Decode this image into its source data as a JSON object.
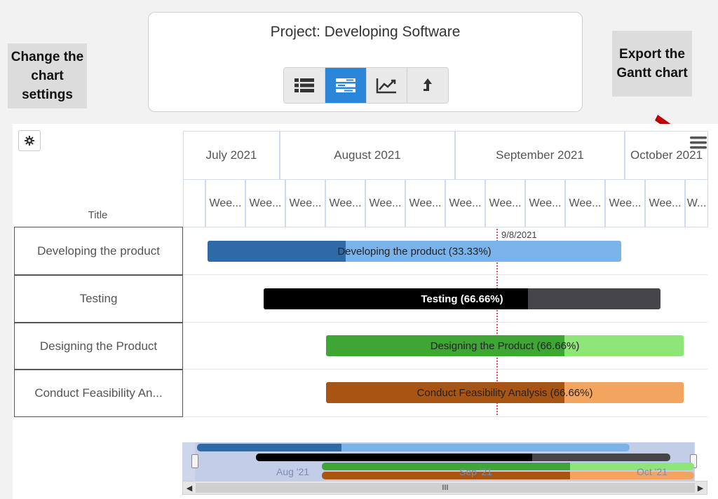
{
  "header": {
    "project_title": "Project: Developing Software",
    "toolbar": [
      {
        "name": "list-view-button",
        "icon": "list-icon",
        "active": false
      },
      {
        "name": "gantt-view-button",
        "icon": "gantt-icon",
        "active": true
      },
      {
        "name": "chart-view-button",
        "icon": "line-chart-icon",
        "active": false
      },
      {
        "name": "upload-button",
        "icon": "up-arrow-icon",
        "active": false
      }
    ]
  },
  "callouts": {
    "settings": "Change the chart settings",
    "export": "Export the Gantt chart"
  },
  "gantt": {
    "title_column_header": "Title",
    "months": [
      "July 2021",
      "August 2021",
      "September 2021",
      "October 2021"
    ],
    "weeks": [
      "Wee...",
      "Wee...",
      "Wee...",
      "Wee...",
      "Wee...",
      "Wee...",
      "Wee...",
      "Wee...",
      "Wee...",
      "Wee...",
      "Wee...",
      "Wee...",
      "W..."
    ],
    "today_label": "9/8/2021",
    "tasks": [
      {
        "title": "Developing the product",
        "bar_label": "Developing the product (33.33%)",
        "progress": 0.3333,
        "fill_color": "#2f6aa6",
        "rest_color": "#7ab3ea",
        "text_color": "#222222"
      },
      {
        "title": "Testing",
        "bar_label": "Testing (66.66%)",
        "progress": 0.6666,
        "fill_color": "#000000",
        "rest_color": "#46464a",
        "text_color": "#ffffff"
      },
      {
        "title": "Designing the Product",
        "bar_label": "Designing the Product (66.66%)",
        "progress": 0.6666,
        "fill_color": "#3fa535",
        "rest_color": "#8ee678",
        "text_color": "#222222"
      },
      {
        "title": "Conduct Feasibility An...",
        "bar_label": "Conduct Feasibility Analysis (66.66%)",
        "progress": 0.6666,
        "fill_color": "#a85412",
        "rest_color": "#f3a55f",
        "text_color": "#222222"
      }
    ]
  },
  "navigator": {
    "labels": [
      "Aug '21",
      "Sep '21",
      "Oct '21"
    ],
    "scroll_thumb_glyph": "III"
  },
  "colors": {
    "arrow_red": "#c00000",
    "toolbar_active": "#2b86d9"
  }
}
